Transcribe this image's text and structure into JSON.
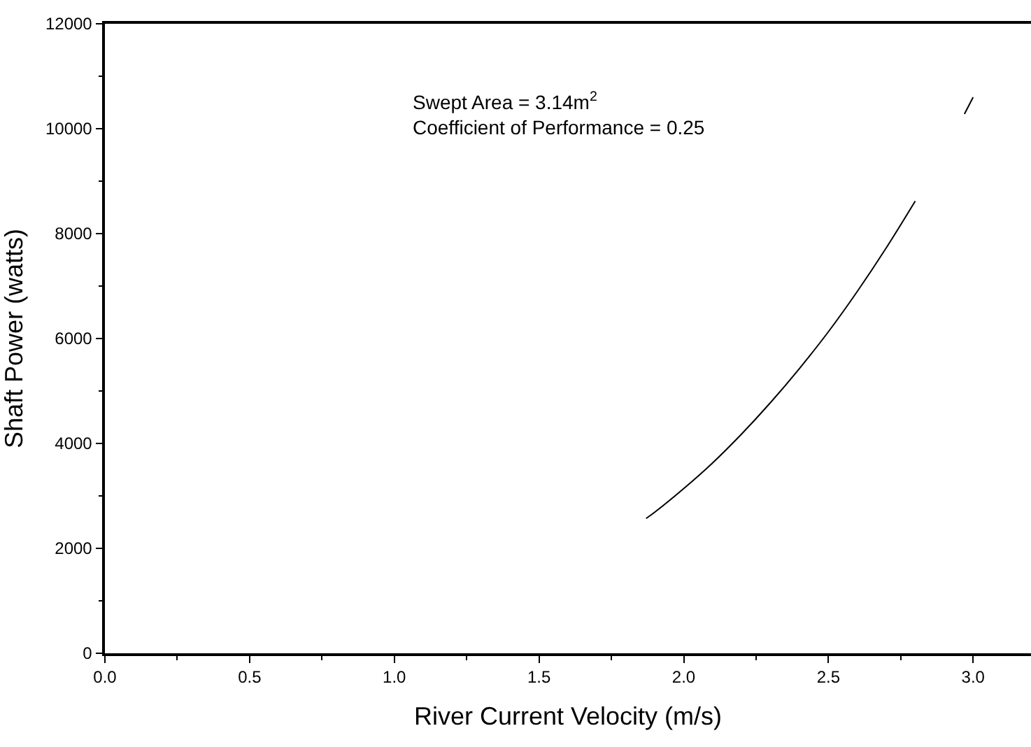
{
  "chart_data": {
    "type": "line",
    "xlabel": "River Current Velocity (m/s)",
    "ylabel": "Shaft Power (watts)",
    "annotations": [
      "Swept Area = 3.14m$^{2}$\nCoefficient of Performance = 0.25"
    ],
    "x": [
      1.87,
      1.9,
      2.0,
      2.1,
      2.2,
      2.3,
      2.4,
      2.5,
      2.6,
      2.7,
      2.8,
      2.9,
      2.97,
      3.0
    ],
    "series": [
      {
        "color": "#000000",
        "values": [
          2570,
          2690,
          3140,
          3630,
          4180,
          4780,
          5430,
          6130,
          6900,
          7730,
          8620,
          null,
          10280,
          10600
        ]
      }
    ],
    "xlim": [
      0,
      3.2
    ],
    "xticks": [
      {
        "value": 0,
        "label": "0.0"
      },
      0.5,
      {
        "value": 1,
        "label": "1.0"
      },
      1.5,
      {
        "value": 2,
        "label": "2.0"
      },
      2.5,
      {
        "value": 3,
        "label": "3.0"
      }
    ],
    "ylim": [
      0,
      12000
    ],
    "yticks": [
      0,
      2000,
      4000,
      6000,
      8000,
      10000,
      12000
    ],
    "marker": "none",
    "line_style": "solid"
  }
}
